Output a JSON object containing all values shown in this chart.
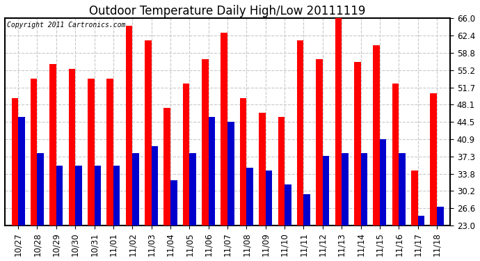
{
  "title": "Outdoor Temperature Daily High/Low 20111119",
  "copyright": "Copyright 2011 Cartronics.com",
  "categories": [
    "10/27",
    "10/28",
    "10/29",
    "10/30",
    "10/31",
    "11/01",
    "11/02",
    "11/03",
    "11/04",
    "11/05",
    "11/06",
    "11/07",
    "11/08",
    "11/09",
    "11/10",
    "11/11",
    "11/12",
    "11/13",
    "11/14",
    "11/15",
    "11/16",
    "11/17",
    "11/18"
  ],
  "highs": [
    49.5,
    53.5,
    56.5,
    55.5,
    53.5,
    53.5,
    64.5,
    61.5,
    47.5,
    52.5,
    57.5,
    63.0,
    49.5,
    46.5,
    45.5,
    61.5,
    57.5,
    66.0,
    57.0,
    60.5,
    52.5,
    34.5,
    50.5
  ],
  "lows": [
    45.5,
    38.0,
    35.5,
    35.5,
    35.5,
    35.5,
    38.0,
    39.5,
    32.5,
    38.0,
    45.5,
    44.5,
    35.0,
    34.5,
    31.5,
    29.5,
    37.5,
    38.0,
    38.0,
    41.0,
    38.0,
    25.0,
    27.0
  ],
  "high_color": "#ff0000",
  "low_color": "#0000cc",
  "bg_color": "#ffffff",
  "grid_color": "#c8c8c8",
  "ylim_min": 23.0,
  "ylim_max": 66.0,
  "yticks": [
    23.0,
    26.6,
    30.2,
    33.8,
    37.3,
    40.9,
    44.5,
    48.1,
    51.7,
    55.2,
    58.8,
    62.4,
    66.0
  ],
  "title_fontsize": 12,
  "copyright_fontsize": 7,
  "tick_fontsize": 8.5
}
